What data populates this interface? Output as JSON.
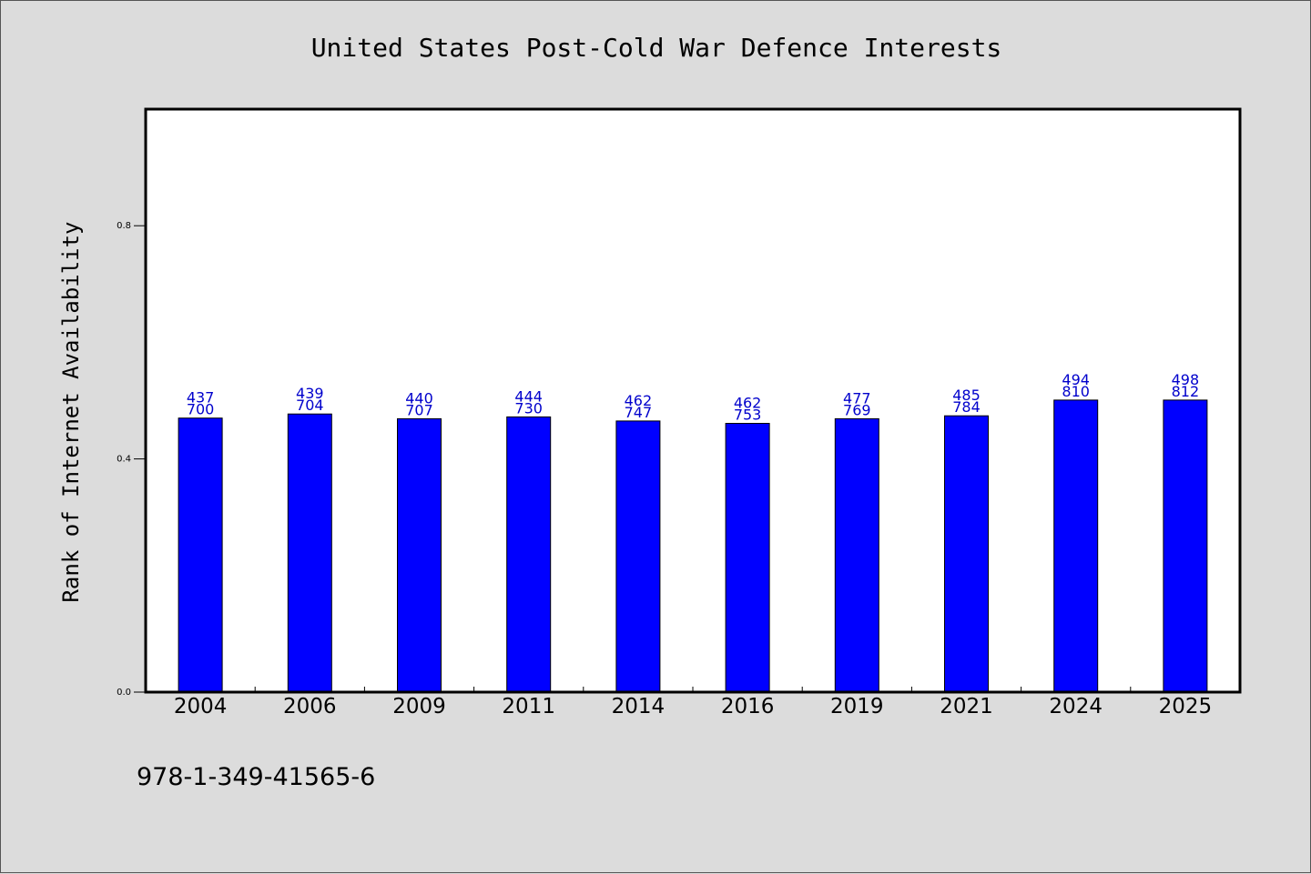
{
  "chart_data": {
    "type": "bar",
    "title": "United States Post-Cold War Defence Interests",
    "xlabel": "",
    "ylabel": "Rank of Internet Availability",
    "categories": [
      "2004",
      "2006",
      "2009",
      "2011",
      "2014",
      "2016",
      "2019",
      "2021",
      "2024",
      "2025"
    ],
    "values": [
      0.47,
      0.477,
      0.469,
      0.472,
      0.465,
      0.461,
      0.469,
      0.474,
      0.501,
      0.501
    ],
    "data_labels": [
      [
        "437",
        "700"
      ],
      [
        "439",
        "704"
      ],
      [
        "440",
        "707"
      ],
      [
        "444",
        "730"
      ],
      [
        "462",
        "747"
      ],
      [
        "462",
        "753"
      ],
      [
        "477",
        "769"
      ],
      [
        "485",
        "784"
      ],
      [
        "494",
        "810"
      ],
      [
        "498",
        "812"
      ]
    ],
    "ylim": [
      0,
      1.0
    ],
    "yticks": [
      "0.0",
      "0.4",
      "0.8"
    ],
    "ytick_values": [
      0,
      0.4,
      0.8
    ],
    "grid": false,
    "bar_color": "#0000ff",
    "label_color": "#0000cc"
  },
  "footer": {
    "isbn": "978-1-349-41565-6"
  }
}
